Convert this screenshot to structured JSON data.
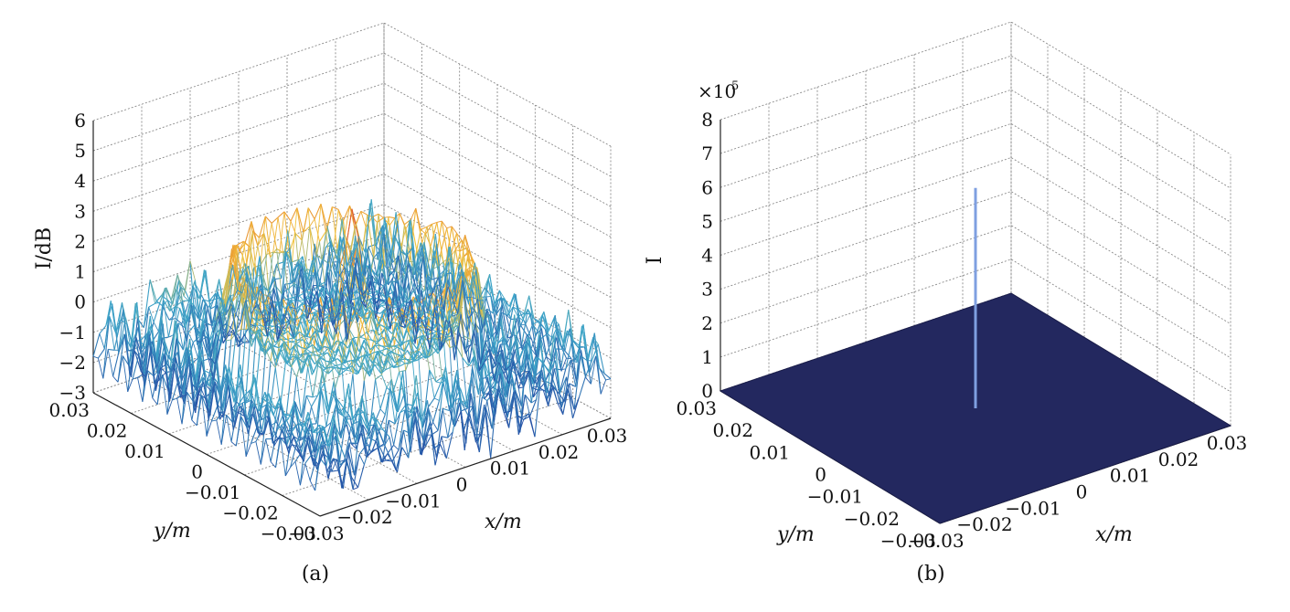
{
  "chart_data": [
    {
      "type": "surface",
      "panel_label": "(a)",
      "xlabel": "x/m",
      "ylabel": "y/m",
      "zlabel": "I/dB",
      "xlim": [
        -0.03,
        0.03
      ],
      "ylim": [
        -0.03,
        0.03
      ],
      "zlim": [
        -3,
        6
      ],
      "x_ticks": [
        "-0.03",
        "-0.02",
        "-0.01",
        "0",
        "0.01",
        "0.02",
        "0.03"
      ],
      "y_ticks": [
        "-0.03",
        "-0.02",
        "-0.01",
        "0",
        "0.01",
        "0.02",
        "0.03"
      ],
      "z_ticks": [
        "-3",
        "-2",
        "-1",
        "0",
        "1",
        "2",
        "3",
        "4",
        "5",
        "6"
      ],
      "grid": true,
      "surface": {
        "base_level": -0.5,
        "ring_radius": 0.0195,
        "ring_peak": 1.2,
        "central_peak": 4.0,
        "outer_peak": 5.3
      }
    },
    {
      "type": "surface",
      "panel_label": "(b)",
      "xlabel": "x/m",
      "ylabel": "y/m",
      "zlabel": "I",
      "z_multiplier": "×10",
      "z_multiplier_exp": "5",
      "xlim": [
        -0.03,
        0.03
      ],
      "ylim": [
        -0.03,
        0.03
      ],
      "zlim": [
        0,
        8
      ],
      "x_ticks": [
        "-0.03",
        "-0.02",
        "-0.01",
        "0",
        "0.01",
        "0.02",
        "0.03"
      ],
      "y_ticks": [
        "-0.03",
        "-0.02",
        "-0.01",
        "0",
        "0.01",
        "0.02",
        "0.03"
      ],
      "z_ticks": [
        "0",
        "1",
        "2",
        "3",
        "4",
        "5",
        "6",
        "7",
        "8"
      ],
      "grid": true,
      "surface": {
        "base_level": 0,
        "central_peak": 6.5
      }
    }
  ],
  "colors": {
    "surface_low": "#1f3a9c",
    "surface_mid": "#3fa7c9",
    "surface_ring": "#f2c23a",
    "surface_peak": "#d63a2a",
    "plane_b": "#23285f",
    "spike_b": "#7f9fe0"
  }
}
